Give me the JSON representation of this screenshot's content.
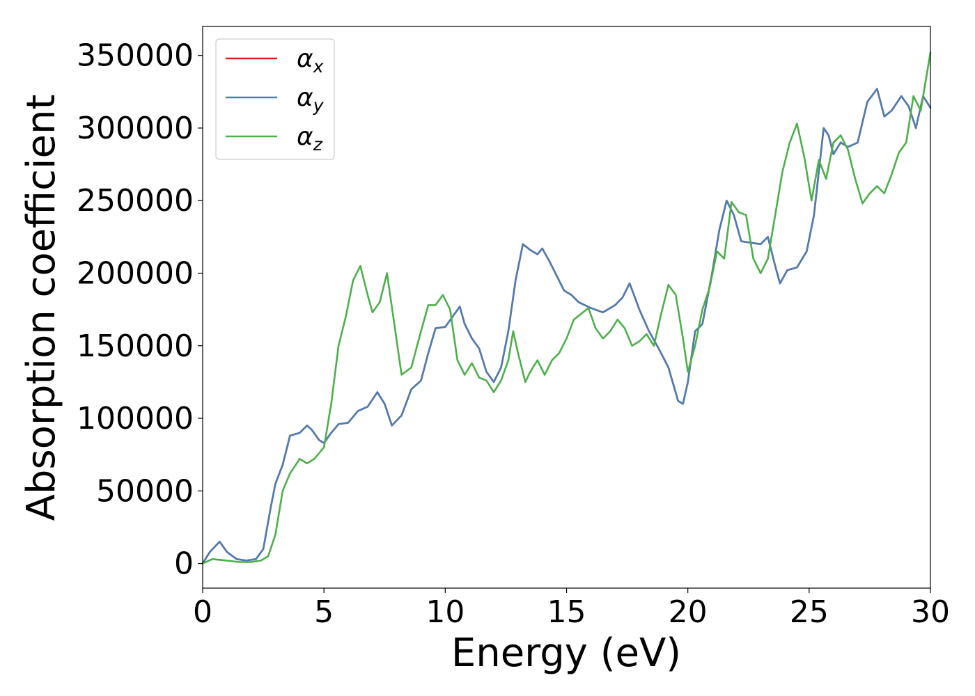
{
  "chart_data": {
    "type": "line",
    "title": "",
    "xlabel": "Energy (eV)",
    "ylabel": "Absorption coefficient",
    "xlim": [
      0,
      30
    ],
    "ylim": [
      -17000,
      370000
    ],
    "xticks": [
      0,
      5,
      10,
      15,
      20,
      25,
      30
    ],
    "xtick_labels": [
      "0",
      "5",
      "10",
      "15",
      "20",
      "25",
      "30"
    ],
    "yticks": [
      0,
      50000,
      100000,
      150000,
      200000,
      250000,
      300000,
      350000
    ],
    "ytick_labels": [
      "0",
      "50000",
      "100000",
      "150000",
      "200000",
      "250000",
      "300000",
      "350000"
    ],
    "grid": false,
    "legend_position": "upper-left",
    "series": [
      {
        "name": "α",
        "subscript": "x",
        "color": "#e41a1c",
        "x": [
          0,
          0.3,
          0.7,
          1.0,
          1.4,
          1.8,
          2.2,
          2.5,
          2.8,
          3.0,
          3.3,
          3.6,
          4.0,
          4.3,
          4.5,
          4.8,
          5.0,
          5.3,
          5.6,
          6.0,
          6.4,
          6.8,
          7.2,
          7.5,
          7.8,
          8.2,
          8.6,
          9.0,
          9.3,
          9.6,
          10.0,
          10.3,
          10.6,
          10.8,
          11.1,
          11.4,
          11.7,
          12.0,
          12.3,
          12.6,
          12.9,
          13.2,
          13.5,
          13.8,
          14.0,
          14.3,
          14.6,
          14.9,
          15.2,
          15.5,
          16.0,
          16.5,
          17.0,
          17.3,
          17.6,
          18.0,
          18.4,
          18.8,
          19.2,
          19.6,
          19.8,
          20.0,
          20.3,
          20.6,
          21.0,
          21.3,
          21.6,
          21.9,
          22.2,
          22.6,
          23.0,
          23.3,
          23.6,
          23.8,
          24.1,
          24.5,
          24.9,
          25.2,
          25.6,
          25.8,
          26.0,
          26.3,
          26.6,
          27.0,
          27.4,
          27.8,
          28.1,
          28.4,
          28.8,
          29.1,
          29.4,
          29.7,
          30.0
        ],
        "values": [
          0,
          8000,
          15000,
          8000,
          3000,
          2000,
          3000,
          10000,
          38000,
          55000,
          68000,
          88000,
          90000,
          95000,
          92000,
          85000,
          83000,
          90000,
          96000,
          97000,
          105000,
          108000,
          118000,
          110000,
          95000,
          102000,
          120000,
          126000,
          145000,
          162000,
          163000,
          170000,
          177000,
          165000,
          155000,
          148000,
          132000,
          125000,
          135000,
          160000,
          195000,
          220000,
          216000,
          213000,
          217000,
          208000,
          198000,
          188000,
          185000,
          180000,
          176000,
          173000,
          178000,
          183000,
          193000,
          175000,
          160000,
          148000,
          135000,
          112000,
          110000,
          125000,
          160000,
          165000,
          200000,
          230000,
          250000,
          240000,
          222000,
          221000,
          220000,
          225000,
          205000,
          193000,
          202000,
          204000,
          215000,
          240000,
          300000,
          295000,
          282000,
          290000,
          287000,
          290000,
          318000,
          327000,
          308000,
          312000,
          322000,
          315000,
          300000,
          322000,
          314000
        ]
      },
      {
        "name": "α",
        "subscript": "y",
        "color": "#4a7eb4",
        "x": [
          0,
          0.3,
          0.7,
          1.0,
          1.4,
          1.8,
          2.2,
          2.5,
          2.8,
          3.0,
          3.3,
          3.6,
          4.0,
          4.3,
          4.5,
          4.8,
          5.0,
          5.3,
          5.6,
          6.0,
          6.4,
          6.8,
          7.2,
          7.5,
          7.8,
          8.2,
          8.6,
          9.0,
          9.3,
          9.6,
          10.0,
          10.3,
          10.6,
          10.8,
          11.1,
          11.4,
          11.7,
          12.0,
          12.3,
          12.6,
          12.9,
          13.2,
          13.5,
          13.8,
          14.0,
          14.3,
          14.6,
          14.9,
          15.2,
          15.5,
          16.0,
          16.5,
          17.0,
          17.3,
          17.6,
          18.0,
          18.4,
          18.8,
          19.2,
          19.6,
          19.8,
          20.0,
          20.3,
          20.6,
          21.0,
          21.3,
          21.6,
          21.9,
          22.2,
          22.6,
          23.0,
          23.3,
          23.6,
          23.8,
          24.1,
          24.5,
          24.9,
          25.2,
          25.6,
          25.8,
          26.0,
          26.3,
          26.6,
          27.0,
          27.4,
          27.8,
          28.1,
          28.4,
          28.8,
          29.1,
          29.4,
          29.7,
          30.0
        ],
        "values": [
          0,
          8000,
          15000,
          8000,
          3000,
          2000,
          3000,
          10000,
          38000,
          55000,
          68000,
          88000,
          90000,
          95000,
          92000,
          85000,
          83000,
          90000,
          96000,
          97000,
          105000,
          108000,
          118000,
          110000,
          95000,
          102000,
          120000,
          126000,
          145000,
          162000,
          163000,
          170000,
          177000,
          165000,
          155000,
          148000,
          132000,
          125000,
          135000,
          160000,
          195000,
          220000,
          216000,
          213000,
          217000,
          208000,
          198000,
          188000,
          185000,
          180000,
          176000,
          173000,
          178000,
          183000,
          193000,
          175000,
          160000,
          148000,
          135000,
          112000,
          110000,
          125000,
          160000,
          165000,
          200000,
          230000,
          250000,
          240000,
          222000,
          221000,
          220000,
          225000,
          205000,
          193000,
          202000,
          204000,
          215000,
          240000,
          300000,
          295000,
          282000,
          290000,
          287000,
          290000,
          318000,
          327000,
          308000,
          312000,
          322000,
          315000,
          300000,
          322000,
          314000
        ]
      },
      {
        "name": "α",
        "subscript": "z",
        "color": "#4daf4a",
        "x": [
          0,
          0.4,
          1.0,
          1.5,
          2.0,
          2.4,
          2.7,
          3.0,
          3.3,
          3.6,
          4.0,
          4.3,
          4.6,
          5.0,
          5.3,
          5.6,
          5.9,
          6.2,
          6.5,
          6.8,
          7.0,
          7.3,
          7.6,
          7.9,
          8.2,
          8.6,
          9.0,
          9.3,
          9.6,
          9.9,
          10.2,
          10.5,
          10.8,
          11.1,
          11.4,
          11.7,
          12.0,
          12.3,
          12.6,
          12.8,
          13.0,
          13.3,
          13.5,
          13.8,
          14.1,
          14.4,
          14.7,
          15.0,
          15.3,
          15.6,
          15.9,
          16.2,
          16.5,
          16.8,
          17.1,
          17.4,
          17.7,
          18.0,
          18.3,
          18.6,
          18.9,
          19.2,
          19.5,
          19.8,
          20.0,
          20.3,
          20.6,
          20.9,
          21.2,
          21.5,
          21.8,
          22.1,
          22.4,
          22.7,
          23.0,
          23.3,
          23.6,
          23.9,
          24.2,
          24.5,
          24.8,
          25.1,
          25.4,
          25.7,
          26.0,
          26.3,
          26.6,
          26.9,
          27.2,
          27.5,
          27.8,
          28.1,
          28.4,
          28.7,
          29.0,
          29.3,
          29.6,
          30.0
        ],
        "values": [
          0,
          3000,
          2000,
          1000,
          1000,
          2000,
          5000,
          20000,
          50000,
          62000,
          72000,
          69000,
          72000,
          80000,
          110000,
          150000,
          170000,
          195000,
          205000,
          185000,
          173000,
          180000,
          200000,
          165000,
          130000,
          135000,
          160000,
          178000,
          178000,
          185000,
          175000,
          140000,
          130000,
          138000,
          128000,
          126000,
          118000,
          126000,
          140000,
          160000,
          145000,
          125000,
          132000,
          140000,
          130000,
          140000,
          145000,
          155000,
          168000,
          172000,
          176000,
          162000,
          155000,
          160000,
          168000,
          162000,
          150000,
          153000,
          158000,
          150000,
          172000,
          192000,
          185000,
          155000,
          132000,
          150000,
          175000,
          190000,
          215000,
          210000,
          249000,
          242000,
          240000,
          210000,
          200000,
          210000,
          240000,
          270000,
          290000,
          303000,
          280000,
          250000,
          278000,
          265000,
          290000,
          295000,
          285000,
          265000,
          248000,
          255000,
          260000,
          255000,
          268000,
          283000,
          290000,
          322000,
          312000,
          352000
        ]
      }
    ]
  }
}
